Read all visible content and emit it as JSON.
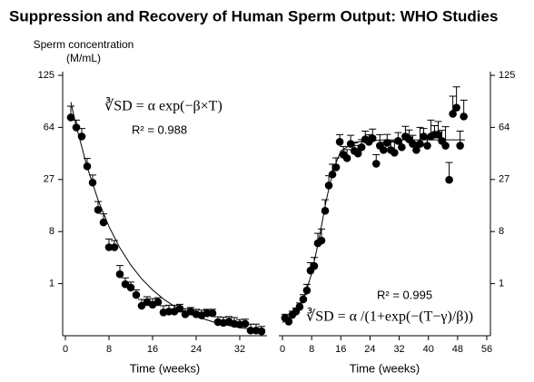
{
  "title": "Suppression  and Recovery of Human Sperm Output: WHO Studies",
  "chart_data": [
    {
      "type": "scatter",
      "yscale": "cbrt",
      "yaxis_side": "left",
      "ylabel": [
        "Sperm concentration",
        "(M/mL)"
      ],
      "xlabel": "Time (weeks)",
      "xlim": [
        -0.5,
        37
      ],
      "xticks": [
        0,
        8,
        16,
        24,
        32
      ],
      "ylim": [
        0,
        125
      ],
      "yticks": [
        1,
        8,
        27,
        64,
        125
      ],
      "annotations": [
        "∛SD = α exp(−β×T)",
        "R² = 0.988"
      ],
      "series": [
        {
          "color": "#000000",
          "x": [
            1,
            2,
            3,
            4,
            5,
            6,
            7,
            8,
            9,
            10,
            11,
            12,
            13,
            14,
            15,
            16,
            17,
            18,
            19,
            20,
            21,
            22,
            23,
            24,
            25,
            26,
            27,
            28,
            29,
            30,
            31,
            32,
            33,
            34,
            35,
            36
          ],
          "values": [
            73.6,
            64,
            56,
            34.4,
            25.4,
            14.1,
            10.3,
            4.9,
            4.9,
            1.65,
            0.97,
            0.79,
            0.48,
            0.19,
            0.27,
            0.21,
            0.27,
            0.09,
            0.1,
            0.1,
            0.14,
            0.07,
            0.1,
            0.07,
            0.06,
            0.08,
            0.08,
            0.018,
            0.015,
            0.02,
            0.012,
            0.01,
            0.012,
            0.001,
            0.001,
            0.0006
          ],
          "errors": [
            12,
            7,
            7,
            5,
            4,
            3,
            2.5,
            1.5,
            1.2,
            0.8,
            0.4,
            0.3,
            0.2,
            0.15,
            0.15,
            0.15,
            0.12,
            0.1,
            0.1,
            0.1,
            0.08,
            0.07,
            0.06,
            0.06,
            0.06,
            0.05,
            0.05,
            0.03,
            0.03,
            0.03,
            0.03,
            0.02,
            0.02,
            0.01,
            0.01,
            0.005
          ]
        }
      ],
      "fit": {
        "color": "#000000",
        "x": [
          1,
          2,
          4,
          6,
          8,
          10,
          12,
          14,
          16,
          18,
          20,
          24,
          28,
          32,
          36
        ],
        "values": [
          90.2,
          65.1,
          33.9,
          17.7,
          9.2,
          4.8,
          2.5,
          1.3,
          0.68,
          0.35,
          0.18,
          0.05,
          0.0135,
          0.0037,
          0.001
        ]
      }
    },
    {
      "type": "scatter",
      "yscale": "cbrt",
      "yaxis_side": "right",
      "xlabel": "Time (weeks)",
      "xlim": [
        -1,
        57
      ],
      "xticks": [
        0,
        8,
        16,
        24,
        32,
        40,
        48,
        56
      ],
      "ylim": [
        0,
        125
      ],
      "yticks": [
        1,
        8,
        27,
        64,
        125
      ],
      "annotations": [
        "R² = 0.995",
        "∛SD = α /(1+exp(−(T−γ)/β))"
      ],
      "series": [
        {
          "color": "#000000",
          "x": [
            0.7,
            1.7,
            2.7,
            3.7,
            4.7,
            5.7,
            6.7,
            7.7,
            8.7,
            9.7,
            10.7,
            11.7,
            12.7,
            13.7,
            14.7,
            15.7,
            16.7,
            17.7,
            18.7,
            19.7,
            20.7,
            21.7,
            22.7,
            23.7,
            24.7,
            25.7,
            26.7,
            27.7,
            28.7,
            29.7,
            30.7,
            31.7,
            32.7,
            33.7,
            34.7,
            35.7,
            36.7,
            37.7,
            38.7,
            39.7,
            40.7,
            41.7,
            42.7,
            43.7,
            44.7,
            45.7,
            46.7,
            47.7,
            48.7,
            49.7
          ],
          "values": [
            0.04,
            0.02,
            0.064,
            0.1,
            0.17,
            0.34,
            0.66,
            1.96,
            2.4,
            5.6,
            6.1,
            13.8,
            24,
            29.7,
            33.8,
            51.6,
            42,
            39.6,
            50,
            44.7,
            42.8,
            47.4,
            53.6,
            51.6,
            54.5,
            36,
            48.6,
            45.3,
            50.8,
            45.3,
            43.4,
            52.3,
            47.4,
            56,
            53.6,
            50,
            45.3,
            50,
            56,
            48.6,
            56,
            57.6,
            57.6,
            52.3,
            48.6,
            26.8,
            77.3,
            84,
            48.6,
            74.6
          ],
          "errors": [
            0.03,
            0.02,
            0.04,
            0.05,
            0.08,
            0.15,
            0.3,
            0.8,
            1,
            2,
            2.5,
            4,
            5,
            6,
            6,
            6,
            6,
            6,
            7,
            6,
            6,
            6,
            7,
            6,
            8,
            6,
            9,
            6,
            7,
            7,
            8,
            7,
            6,
            9,
            8,
            7,
            6,
            14,
            7,
            6,
            15,
            8,
            12,
            9,
            16,
            10,
            20,
            25,
            12,
            18
          ]
        }
      ],
      "fit": {
        "color": "#000000",
        "x": [
          0,
          4,
          6,
          8,
          10,
          12,
          14,
          16,
          20,
          28,
          50
        ],
        "values": [
          0.016,
          0.09,
          0.42,
          1.7,
          6.3,
          17.6,
          32.8,
          44.7,
          51.5,
          53.2,
          53.2
        ]
      }
    }
  ]
}
